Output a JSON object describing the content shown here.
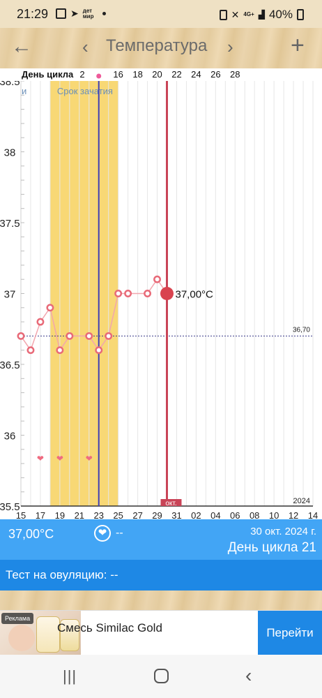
{
  "status_bar": {
    "time": "21:29",
    "network": "4G+",
    "battery": "40%",
    "dm_label": "дет мир"
  },
  "app_bar": {
    "back_icon": "arrow-left-icon",
    "prev_icon": "chevron-left-icon",
    "title": "Температура",
    "next_icon": "chevron-right-icon",
    "add_icon": "plus-icon"
  },
  "chart_data": {
    "type": "line",
    "y_tick_labels": [
      "38.5",
      "38",
      "37.5",
      "37",
      "36.5",
      "36",
      "35.5"
    ],
    "y_ticks": [
      38.5,
      38,
      37.5,
      37,
      36.5,
      36,
      35.5
    ],
    "ylim": [
      35.5,
      38.5
    ],
    "x_tick_labels": [
      "15",
      "17",
      "19",
      "21",
      "23",
      "25",
      "27",
      "29",
      "31",
      "02",
      "04",
      "06",
      "08",
      "10",
      "12",
      "14"
    ],
    "x_range_days": [
      15,
      45
    ],
    "cycle_header_label": "День цикла",
    "cycle_day_labels": [
      "2",
      "16",
      "18",
      "20",
      "22",
      "24",
      "26",
      "28"
    ],
    "fertile_window_label": "Срок зачатия",
    "fertile_window": {
      "start_day": 18,
      "end_day": 25
    },
    "ovulation_day": 23,
    "coverline": {
      "value": 36.7,
      "label": "36,70"
    },
    "month_label": "окт.",
    "year_label": "2024",
    "selected_day": 30,
    "selected_label": "37,00°C",
    "series": [
      {
        "x": [
          15,
          16,
          17,
          18,
          19,
          20,
          22,
          23,
          24,
          25,
          26,
          28,
          29,
          30
        ],
        "y": [
          36.7,
          36.6,
          36.8,
          36.9,
          36.6,
          36.7,
          36.7,
          36.6,
          36.7,
          37.0,
          37.0,
          37.0,
          37.1,
          37.0
        ]
      }
    ],
    "intercourse_days": [
      17,
      19,
      22
    ],
    "period_marker_day": 23,
    "colors": {
      "fertile": "#f8d875",
      "ovulation_line": "#3f3fb5",
      "selected_line": "#c94457",
      "series": "#e86a78",
      "heart": "#ef6b80",
      "coverline": "#3a3a8a"
    }
  },
  "info_bar": {
    "temperature": "37,00°C",
    "heart_icon": "heart-icon",
    "heart_value": "--",
    "date": "30 окт. 2024 г.",
    "cycle_day": "День цикла 21"
  },
  "ovulation_test": {
    "label": "Тест на овуляцию: --"
  },
  "ad": {
    "badge": "Реклама",
    "headline": "Смесь Similac Gold",
    "button": "Перейти"
  },
  "nav_bar": {
    "recents_icon": "recents-icon",
    "home_icon": "home-icon",
    "back_icon": "back-icon"
  }
}
